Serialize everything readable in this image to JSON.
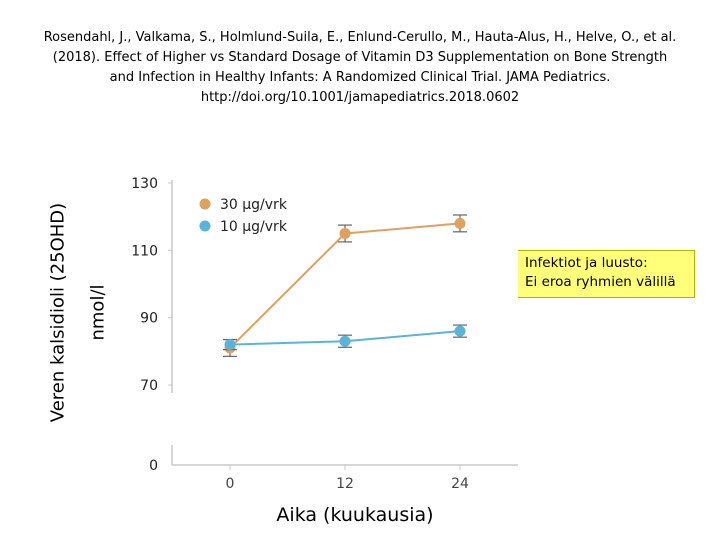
{
  "citation": {
    "line1": "Rosendahl, J., Valkama, S., Holmlund-Suila, E., Enlund-Cerullo, M., Hauta-Alus, H., Helve, O., et al.",
    "line2": "(2018). Effect of Higher vs Standard Dosage of Vitamin D3 Supplementation on Bone Strength",
    "line3": "and Infection in Healthy Infants: A Randomized Clinical Trial. JAMA Pediatrics.",
    "line4": "http://doi.org/10.1001/jamapediatrics.2018.0602"
  },
  "callout": {
    "line1": "Infektiot ja luusto:",
    "line2": "Ei eroa ryhmien välillä"
  },
  "chart_data": {
    "type": "line",
    "xlabel": "Aika (kuukausia)",
    "ylabel_line1": "Veren kalsidioli (25OHD)",
    "ylabel_line2": "nmol/l",
    "x": [
      0,
      12,
      24
    ],
    "x_tick_labels": [
      "0",
      "12",
      "24"
    ],
    "y_tick_labels": [
      "0",
      "70",
      "90",
      "110",
      "130"
    ],
    "y_ticks": [
      70,
      90,
      110,
      130
    ],
    "y_axis_break": true,
    "ylim": [
      70,
      130
    ],
    "grid": false,
    "legend_position": "top-left",
    "series": [
      {
        "name": "30 µg/vrk",
        "color": "#e0a060",
        "values": [
          81,
          115,
          118
        ],
        "errors": [
          2.5,
          2.5,
          2.5
        ]
      },
      {
        "name": "10 µg/vrk",
        "color": "#5ab4d9",
        "values": [
          82,
          83,
          86
        ],
        "errors": [
          1.5,
          1.8,
          1.8
        ]
      }
    ]
  }
}
